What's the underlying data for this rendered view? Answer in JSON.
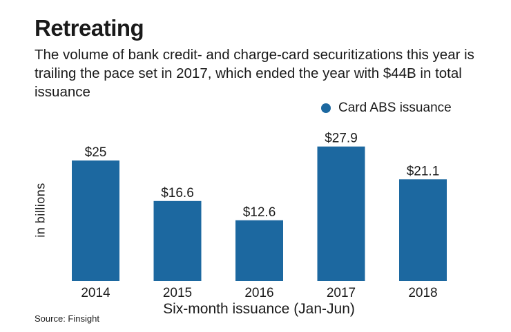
{
  "title": "Retreating",
  "subtitle": "The volume of bank credit- and charge-card securitizations this year is trailing the pace set in 2017, which ended the year with $44B in total issuance",
  "source": "Source: Finsight",
  "colors": {
    "bar": "#1c68a0",
    "text": "#1a1a1a"
  },
  "chart_data": {
    "type": "bar",
    "categories": [
      "2014",
      "2015",
      "2016",
      "2017",
      "2018"
    ],
    "series": [
      {
        "name": "Card ABS issuance",
        "values": [
          25,
          16.6,
          12.6,
          27.9,
          21.1
        ]
      }
    ],
    "data_labels": [
      "$25",
      "$16.6",
      "$12.6",
      "$27.9",
      "$21.1"
    ],
    "xlabel": "Six-month issuance (Jan-Jun)",
    "ylabel": "in billions",
    "ylim": [
      0,
      30
    ],
    "grid": false,
    "legend": "top-right"
  }
}
